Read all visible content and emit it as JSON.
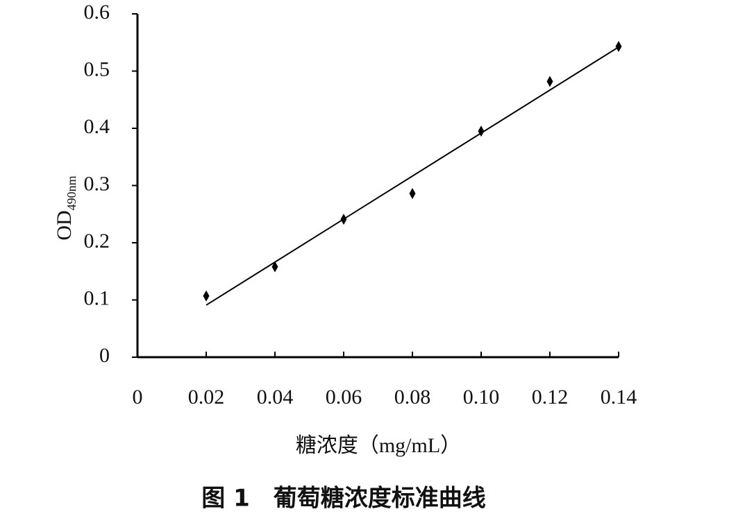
{
  "chart_data": {
    "type": "scatter",
    "caption": "图 1　葡萄糖浓度标准曲线",
    "xlabel": "糖浓度（mg/mL）",
    "ylabel": {
      "text": "OD",
      "subscript": "490nm"
    },
    "x": [
      0.02,
      0.04,
      0.06,
      0.08,
      0.1,
      0.12,
      0.14
    ],
    "series": [
      {
        "color": "#000000",
        "values": [
          0.107,
          0.158,
          0.241,
          0.286,
          0.395,
          0.482,
          0.543
        ]
      }
    ],
    "fit_line": {
      "x": [
        0.02,
        0.14
      ],
      "values": [
        0.091,
        0.542
      ],
      "color": "#000000"
    },
    "xlim": [
      0,
      0.14
    ],
    "ylim": [
      0,
      0.6
    ],
    "xticks": [
      0,
      0.02,
      0.04,
      0.06,
      0.08,
      {
        "value": 0.1,
        "label": "0.10"
      },
      0.12,
      0.14
    ],
    "yticks": [
      0,
      0.1,
      0.2,
      0.3,
      0.4,
      0.5,
      0.6
    ]
  }
}
